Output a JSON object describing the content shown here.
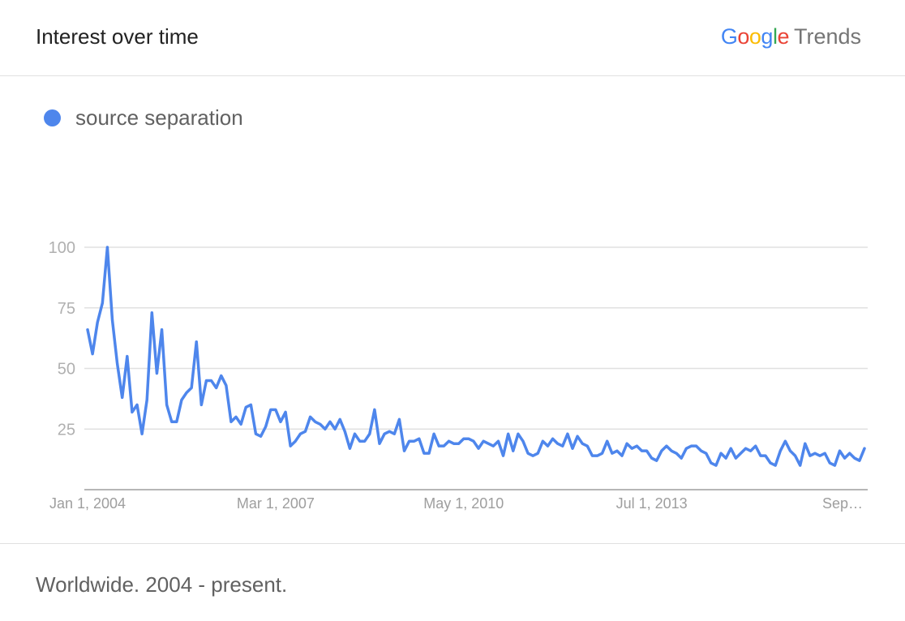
{
  "header": {
    "title": "Interest over time",
    "brand_google": "Google",
    "brand_trends": "Trends"
  },
  "footer": {
    "text": "Worldwide. 2004 - present."
  },
  "colors": {
    "series": "#4e86ec",
    "grid": "#e0e0e0",
    "google_blue": "#4285f4",
    "google_red": "#ea4335",
    "google_yellow": "#fbbc05",
    "google_green": "#34a853"
  },
  "chart_data": {
    "type": "line",
    "title": "Interest over time",
    "xlabel": "",
    "ylabel": "",
    "ylim": [
      0,
      100
    ],
    "yticks": [
      25,
      50,
      75,
      100
    ],
    "xticks": [
      "Jan 1, 2004",
      "Mar 1, 2007",
      "May 1, 2010",
      "Jul 1, 2013",
      "Sep…"
    ],
    "grid": true,
    "legend": "top-left",
    "x_start": "2004-01",
    "x_interval": "monthly",
    "series": [
      {
        "name": "source separation",
        "values": [
          66,
          56,
          69,
          77,
          100,
          70,
          52,
          38,
          55,
          32,
          35,
          23,
          37,
          73,
          48,
          66,
          35,
          28,
          28,
          37,
          40,
          42,
          61,
          35,
          45,
          45,
          42,
          47,
          43,
          28,
          30,
          27,
          34,
          35,
          23,
          22,
          26,
          33,
          33,
          28,
          32,
          18,
          20,
          23,
          24,
          30,
          28,
          27,
          25,
          28,
          25,
          29,
          24,
          17,
          23,
          20,
          20,
          23,
          33,
          19,
          23,
          24,
          23,
          29,
          16,
          20,
          20,
          21,
          15,
          15,
          23,
          18,
          18,
          20,
          19,
          19,
          21,
          21,
          20,
          17,
          20,
          19,
          18,
          20,
          14,
          23,
          16,
          23,
          20,
          15,
          14,
          15,
          20,
          18,
          21,
          19,
          18,
          23,
          17,
          22,
          19,
          18,
          14,
          14,
          15,
          20,
          15,
          16,
          14,
          19,
          17,
          18,
          16,
          16,
          13,
          12,
          16,
          18,
          16,
          15,
          13,
          17,
          18,
          18,
          16,
          15,
          11,
          10,
          15,
          13,
          17,
          13,
          15,
          17,
          16,
          18,
          14,
          14,
          11,
          10,
          16,
          20,
          16,
          14,
          10,
          19,
          14,
          15,
          14,
          15,
          11,
          10,
          16,
          13,
          15,
          13,
          12,
          17
        ]
      }
    ]
  }
}
